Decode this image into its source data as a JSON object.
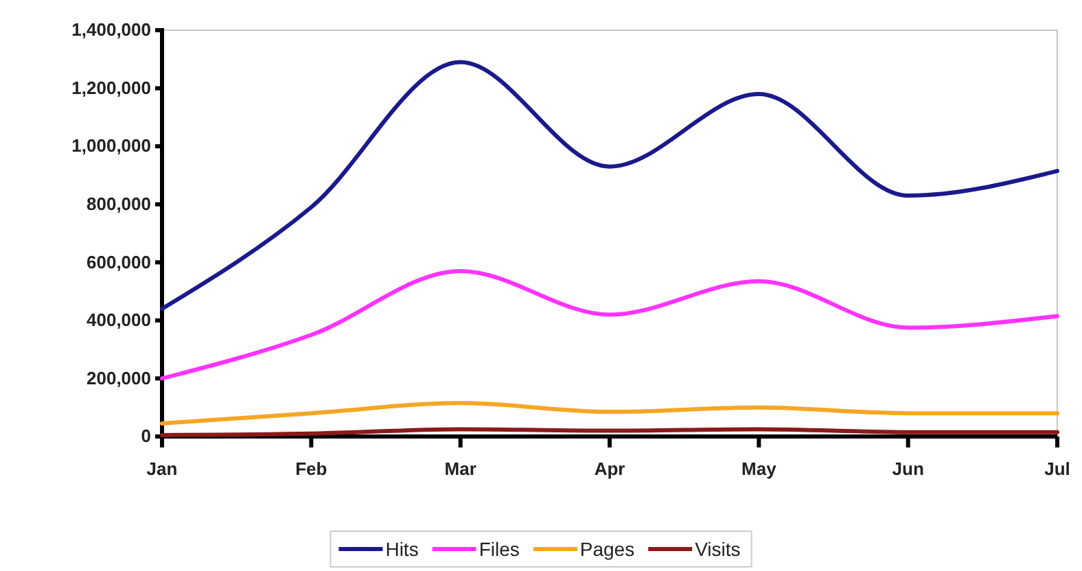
{
  "chart_data": {
    "type": "line",
    "categories": [
      "Jan",
      "Feb",
      "Mar",
      "Apr",
      "May",
      "Jun",
      "Jul"
    ],
    "series": [
      {
        "name": "Hits",
        "color": "#1a1a8c",
        "values": [
          440000,
          790000,
          1290000,
          930000,
          1180000,
          830000,
          915000
        ]
      },
      {
        "name": "Files",
        "color": "#ff33ff",
        "values": [
          200000,
          350000,
          570000,
          420000,
          535000,
          375000,
          415000
        ]
      },
      {
        "name": "Pages",
        "color": "#f5a623",
        "values": [
          45000,
          80000,
          115000,
          85000,
          100000,
          80000,
          80000
        ]
      },
      {
        "name": "Visits",
        "color": "#8b1a1a",
        "values": [
          5000,
          10000,
          25000,
          20000,
          25000,
          15000,
          15000
        ]
      }
    ],
    "ylim": [
      0,
      1400000
    ],
    "yticks": [
      {
        "value": 0,
        "label": "0"
      },
      {
        "value": 200000,
        "label": "200,000"
      },
      {
        "value": 400000,
        "label": "400,000"
      },
      {
        "value": 600000,
        "label": "600,000"
      },
      {
        "value": 800000,
        "label": "800,000"
      },
      {
        "value": 1000000,
        "label": "1,000,000"
      },
      {
        "value": 1200000,
        "label": "1,200,000"
      },
      {
        "value": 1400000,
        "label": "1,400,000"
      }
    ],
    "grid": false,
    "legend": "bottom",
    "marker": "none",
    "line_style": "solid"
  }
}
